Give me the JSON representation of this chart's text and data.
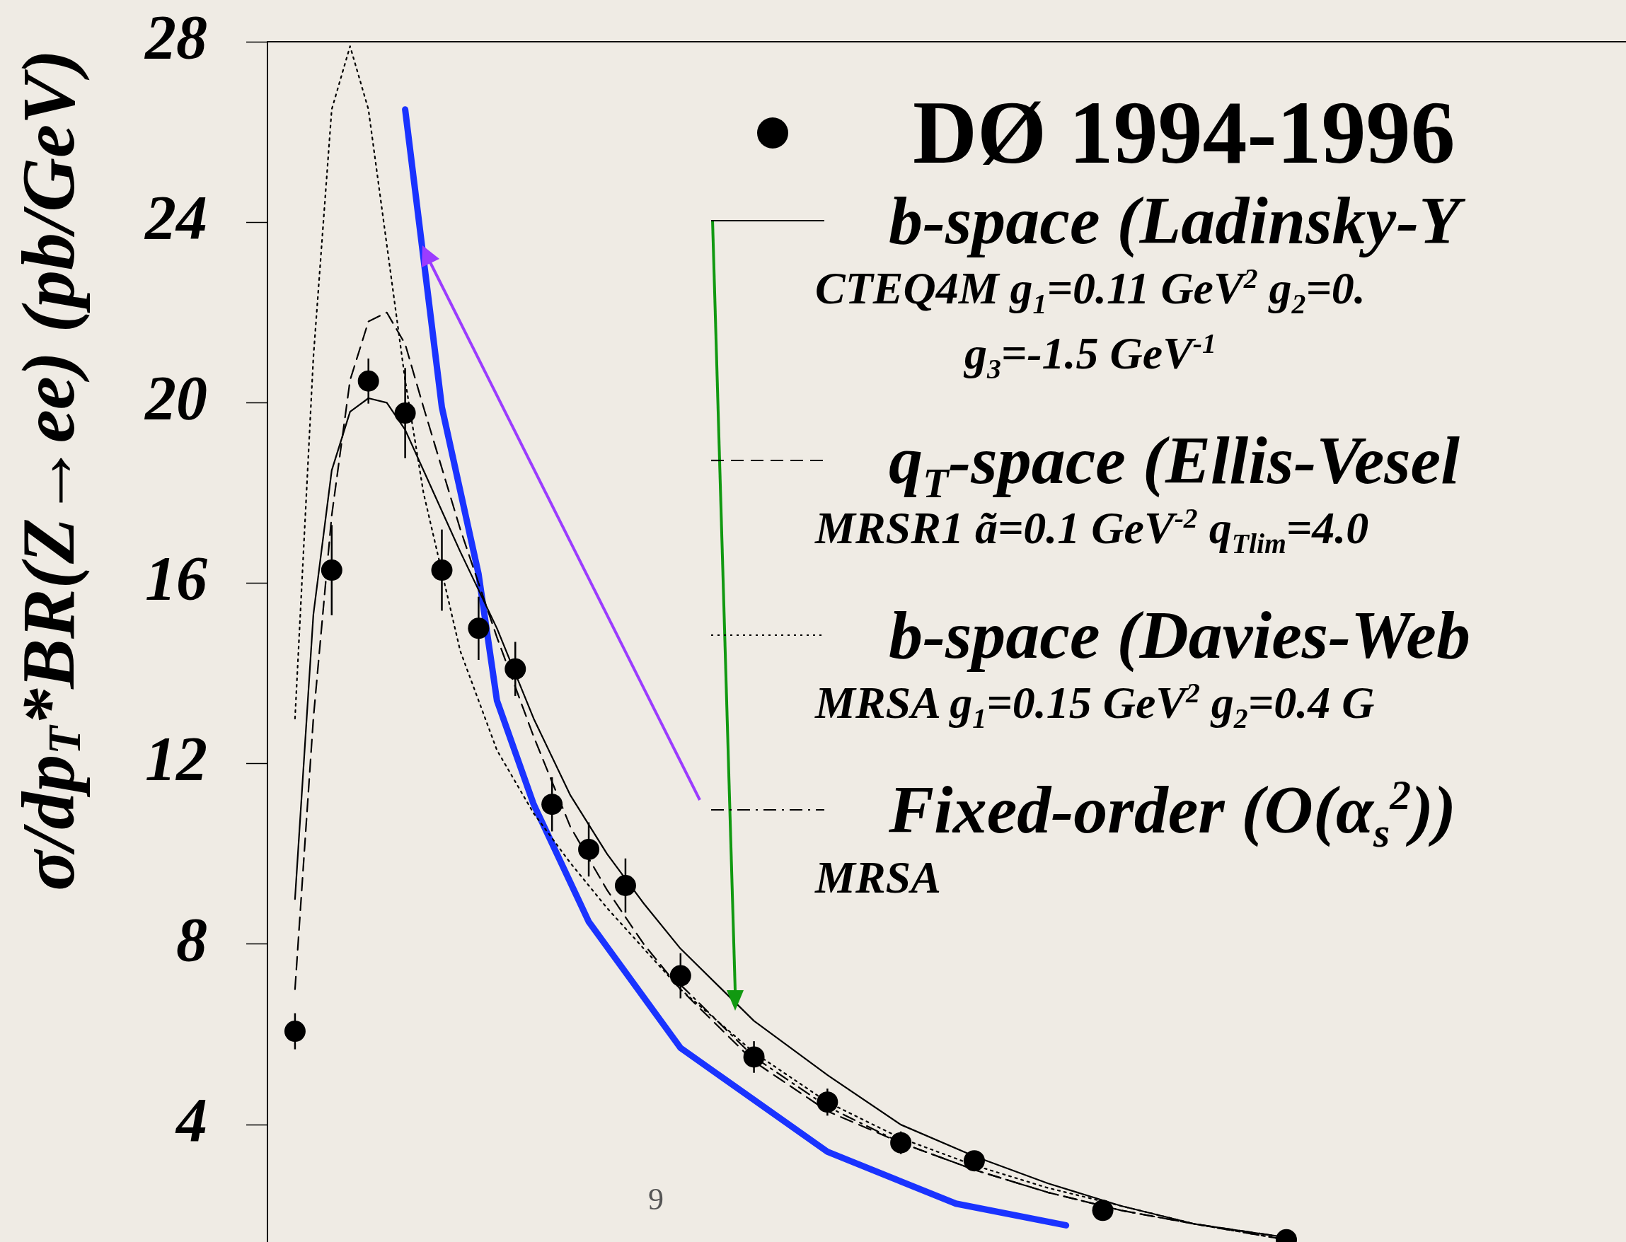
{
  "chart_data": {
    "type": "line",
    "ylabel": "σ/dp$_{T}$*BR(Z→ee) (pb/GeV)",
    "categories": [
      null,
      null,
      null,
      null,
      null,
      null,
      null,
      null,
      null,
      null,
      null,
      null,
      null,
      null,
      null,
      null,
      null,
      null,
      null,
      null,
      null,
      null,
      null,
      null,
      null,
      null,
      null,
      null,
      null,
      null,
      null,
      null,
      null,
      null,
      null,
      null,
      null,
      null,
      null,
      null,
      null,
      null,
      null,
      null,
      null,
      null,
      null,
      null,
      null,
      null,
      null,
      null,
      null,
      null,
      null,
      null,
      null,
      null,
      null,
      null,
      null,
      null,
      null,
      null,
      null,
      null,
      null,
      null,
      null,
      null,
      null,
      null,
      null,
      null
    ],
    "series": [
      {
        "name": "DØ 1994-1996",
        "type": "scatter",
        "marker": "circle",
        "color": "#000000",
        "values": [
          null,
          6.07,
          null,
          16.29,
          null,
          20.48,
          null,
          19.77,
          null,
          16.29,
          null,
          15.0,
          null,
          14.1,
          null,
          11.1,
          null,
          10.1,
          null,
          9.3,
          null,
          null,
          7.3,
          null,
          null,
          null,
          5.5,
          null,
          null,
          null,
          4.5,
          null,
          null,
          null,
          3.6,
          null,
          null,
          null,
          3.2,
          null,
          null,
          null,
          null,
          null,
          null,
          2.1,
          null,
          null,
          null,
          null,
          null,
          null,
          null,
          null,
          null,
          1.45,
          null,
          null,
          null,
          null,
          null,
          null,
          null,
          null,
          null,
          null,
          null,
          null,
          null,
          null,
          null,
          null,
          null,
          null
        ],
        "errors": [
          null,
          0.4,
          null,
          1.0,
          null,
          0.5,
          null,
          1.0,
          null,
          0.9,
          null,
          0.7,
          null,
          0.6,
          null,
          0.6,
          null,
          0.6,
          null,
          0.6,
          null,
          null,
          0.5,
          null,
          null,
          null,
          0.35,
          null,
          null,
          null,
          0.3,
          null,
          null,
          null,
          0.25,
          null,
          null,
          null,
          0.2,
          null,
          null,
          null,
          null,
          null,
          null,
          0.15,
          null,
          null,
          null,
          null,
          null,
          null,
          null,
          null,
          null,
          null,
          null,
          null,
          null,
          null,
          null,
          null,
          null,
          null,
          null,
          null,
          null,
          null,
          null,
          null,
          null,
          null,
          null,
          null
        ]
      },
      {
        "name": "b-space (Ladinsky-Y\nCTEQ4M g$_{1}$=0.11 GeV$^{2}$ g$_{2}$=0.\ng$_{3}$=-1.5 GeV$^{-1}$",
        "line_style": "solid",
        "color": "#000000",
        "values": [
          null,
          9,
          15.3,
          18.5,
          19.8,
          20.1,
          20.0,
          19.4,
          18.5,
          null,
          16.7,
          null,
          15.0,
          null,
          13.0,
          null,
          11.3,
          null,
          10.0,
          null,
          8.9,
          null,
          7.9,
          null,
          null,
          null,
          6.3,
          null,
          null,
          null,
          5.1,
          null,
          null,
          null,
          4.0,
          null,
          null,
          null,
          3.3,
          null,
          null,
          null,
          2.7,
          null,
          null,
          null,
          2.2,
          null,
          null,
          null,
          1.8,
          null,
          null,
          null,
          null,
          1.5,
          null,
          null,
          null,
          null,
          null,
          null,
          null,
          null,
          null,
          null,
          null,
          null,
          null,
          null,
          null,
          null,
          null,
          null
        ]
      },
      {
        "name": "q$_{T}$-space (Ellis-Vesel\nMRSR1 ã=0.1 GeV$^{-2}$ q$_{Tlim}$=4.0",
        "line_style": "dashed",
        "color": "#000000",
        "values": [
          null,
          7,
          13,
          17.5,
          20.5,
          21.8,
          22.0,
          21.3,
          19.9,
          null,
          17.2,
          null,
          14.8,
          null,
          12.6,
          null,
          10.6,
          null,
          9.2,
          null,
          8.0,
          null,
          7.0,
          null,
          null,
          null,
          5.4,
          null,
          null,
          null,
          4.3,
          null,
          null,
          null,
          3.6,
          null,
          null,
          null,
          3.0,
          null,
          null,
          null,
          2.5,
          null,
          null,
          null,
          2.1,
          null,
          null,
          null,
          1.8,
          null,
          null,
          null,
          null,
          1.5,
          null,
          null,
          null,
          null,
          null,
          null,
          null,
          null,
          null,
          null,
          null,
          null,
          null,
          null,
          null,
          null,
          null,
          null
        ]
      },
      {
        "name": "b-space (Davies-Web\nMRSA g$_{1}$=0.15 GeV$^{2}$ g$_{2}$=0.4 G",
        "line_style": "dotted",
        "color": "#000000",
        "values": [
          null,
          13,
          21,
          26.5,
          27.9,
          26.5,
          23.5,
          20.5,
          18,
          null,
          14.5,
          null,
          12.3,
          null,
          10.9,
          null,
          9.8,
          null,
          8.8,
          null,
          7.9,
          null,
          7.0,
          null,
          null,
          null,
          5.6,
          null,
          null,
          null,
          4.5,
          null,
          null,
          null,
          3.7,
          null,
          null,
          null,
          3.1,
          null,
          null,
          null,
          2.6,
          null,
          null,
          null,
          2.2,
          null,
          null,
          null,
          1.8,
          null,
          null,
          null,
          null,
          1.45,
          null,
          null,
          null,
          null,
          null,
          null,
          null,
          null,
          null,
          null,
          null,
          null,
          null,
          null,
          null,
          null,
          null,
          null
        ]
      },
      {
        "name": "Fixed-order (O(α$_{s}$$^{2}$))\nMRSA",
        "line_style": "dashdot",
        "color": "#000000",
        "values": [
          null,
          null,
          null,
          null,
          null,
          null,
          null,
          null,
          null,
          null,
          null,
          null,
          null,
          null,
          null,
          null,
          null,
          null,
          null,
          null,
          null,
          null,
          7.1,
          null,
          null,
          null,
          5.5,
          null,
          null,
          null,
          4.4,
          null,
          null,
          null,
          3.6,
          null,
          null,
          null,
          3.0,
          null,
          null,
          null,
          2.5,
          null,
          null,
          null,
          2.1,
          null,
          null,
          null,
          1.8,
          null,
          null,
          null,
          null,
          1.45,
          null,
          null,
          null,
          null,
          null,
          null,
          null,
          null,
          null,
          null,
          null,
          null,
          null,
          null,
          null,
          null,
          null,
          null
        ]
      },
      {
        "line_style": "solid",
        "color": "#1a33ff",
        "values": [
          null,
          null,
          null,
          null,
          null,
          null,
          null,
          26.5,
          null,
          19.9,
          null,
          16.2,
          13.4,
          null,
          11.1,
          null,
          null,
          8.5,
          null,
          null,
          null,
          null,
          5.7,
          null,
          null,
          null,
          null,
          null,
          null,
          null,
          3.4,
          null,
          null,
          null,
          null,
          null,
          null,
          2.25,
          null,
          null,
          null,
          null,
          null,
          1.77,
          null,
          null,
          null,
          null,
          null,
          null,
          null,
          null,
          null,
          null,
          null,
          null,
          null,
          null,
          null,
          null,
          null,
          null,
          null,
          null,
          null,
          null,
          null,
          null,
          null,
          null,
          null,
          null,
          null,
          null
        ]
      }
    ],
    "ylim": [
      1.4,
      28
    ],
    "yticks": [
      4,
      8,
      12,
      16,
      20,
      24,
      28
    ],
    "tick_labels": "y",
    "legend": "top right",
    "annotations": [
      "9"
    ]
  }
}
